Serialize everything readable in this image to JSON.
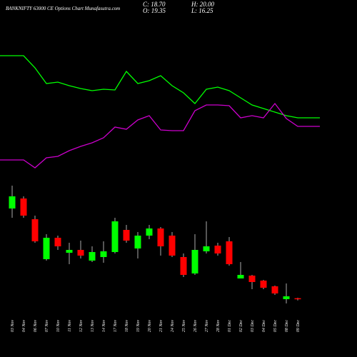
{
  "chart_data": {
    "type": "candlestick",
    "title": "BANKNIFTY 63000 CE Options Chart Munafasutra.com",
    "info": [
      "C: 18.70",
      "H: 20.00",
      "O: 19.35",
      "L: 16.25"
    ],
    "categories": [
      "03 Nov",
      "04 Nov",
      "06 Nov",
      "07 Nov",
      "10 Nov",
      "11 Nov",
      "12 Nov",
      "13 Nov",
      "14 Nov",
      "17 Nov",
      "18 Nov",
      "19 Nov",
      "20 Nov",
      "21 Nov",
      "24 Nov",
      "25 Nov",
      "26 Nov",
      "27 Nov",
      "28 Nov",
      "01 Dec",
      "02 Dec",
      "03 Dec",
      "04 Dec",
      "05 Dec",
      "08 Dec",
      "09 Dec"
    ],
    "open": [
      145,
      159,
      130,
      74,
      104,
      83,
      87,
      72,
      77,
      84,
      115,
      89,
      107,
      117,
      107,
      77,
      54,
      85,
      93,
      99,
      47,
      51,
      44,
      36,
      18,
      19.35
    ],
    "close": [
      162,
      135,
      99,
      104,
      92,
      87,
      79,
      84,
      85,
      127,
      100,
      107,
      117,
      92,
      79,
      52,
      87,
      92,
      82,
      67,
      52,
      42,
      34,
      26,
      22,
      18.7
    ],
    "high": [
      177,
      162,
      135,
      109,
      107,
      97,
      100,
      92,
      99,
      132,
      122,
      112,
      122,
      119,
      112,
      82,
      109,
      127,
      97,
      105,
      70,
      52,
      45,
      37,
      40,
      20
    ],
    "low": [
      132,
      132,
      97,
      72,
      87,
      67,
      75,
      70,
      69,
      82,
      97,
      75,
      102,
      79,
      77,
      49,
      52,
      82,
      79,
      65,
      47,
      32,
      32,
      24,
      12,
      16.25
    ],
    "up_color": "#00ff00",
    "down_color": "#ff0000",
    "series": [
      {
        "color": "#00ff00",
        "values": [
          359,
          359,
          342,
          320,
          322,
          317,
          313,
          310,
          312,
          311,
          337,
          320,
          324,
          331,
          317,
          307,
          292,
          312,
          315,
          310,
          300,
          290,
          285,
          280,
          275,
          272
        ]
      },
      {
        "color": "#cc00cc",
        "values": [
          213,
          213,
          202,
          216,
          218,
          226,
          232,
          237,
          244,
          259,
          256,
          269,
          275,
          255,
          254,
          254,
          282,
          290,
          290,
          289,
          272,
          275,
          272,
          292,
          271,
          260
        ]
      }
    ],
    "ylim": [
      0,
      437
    ]
  }
}
